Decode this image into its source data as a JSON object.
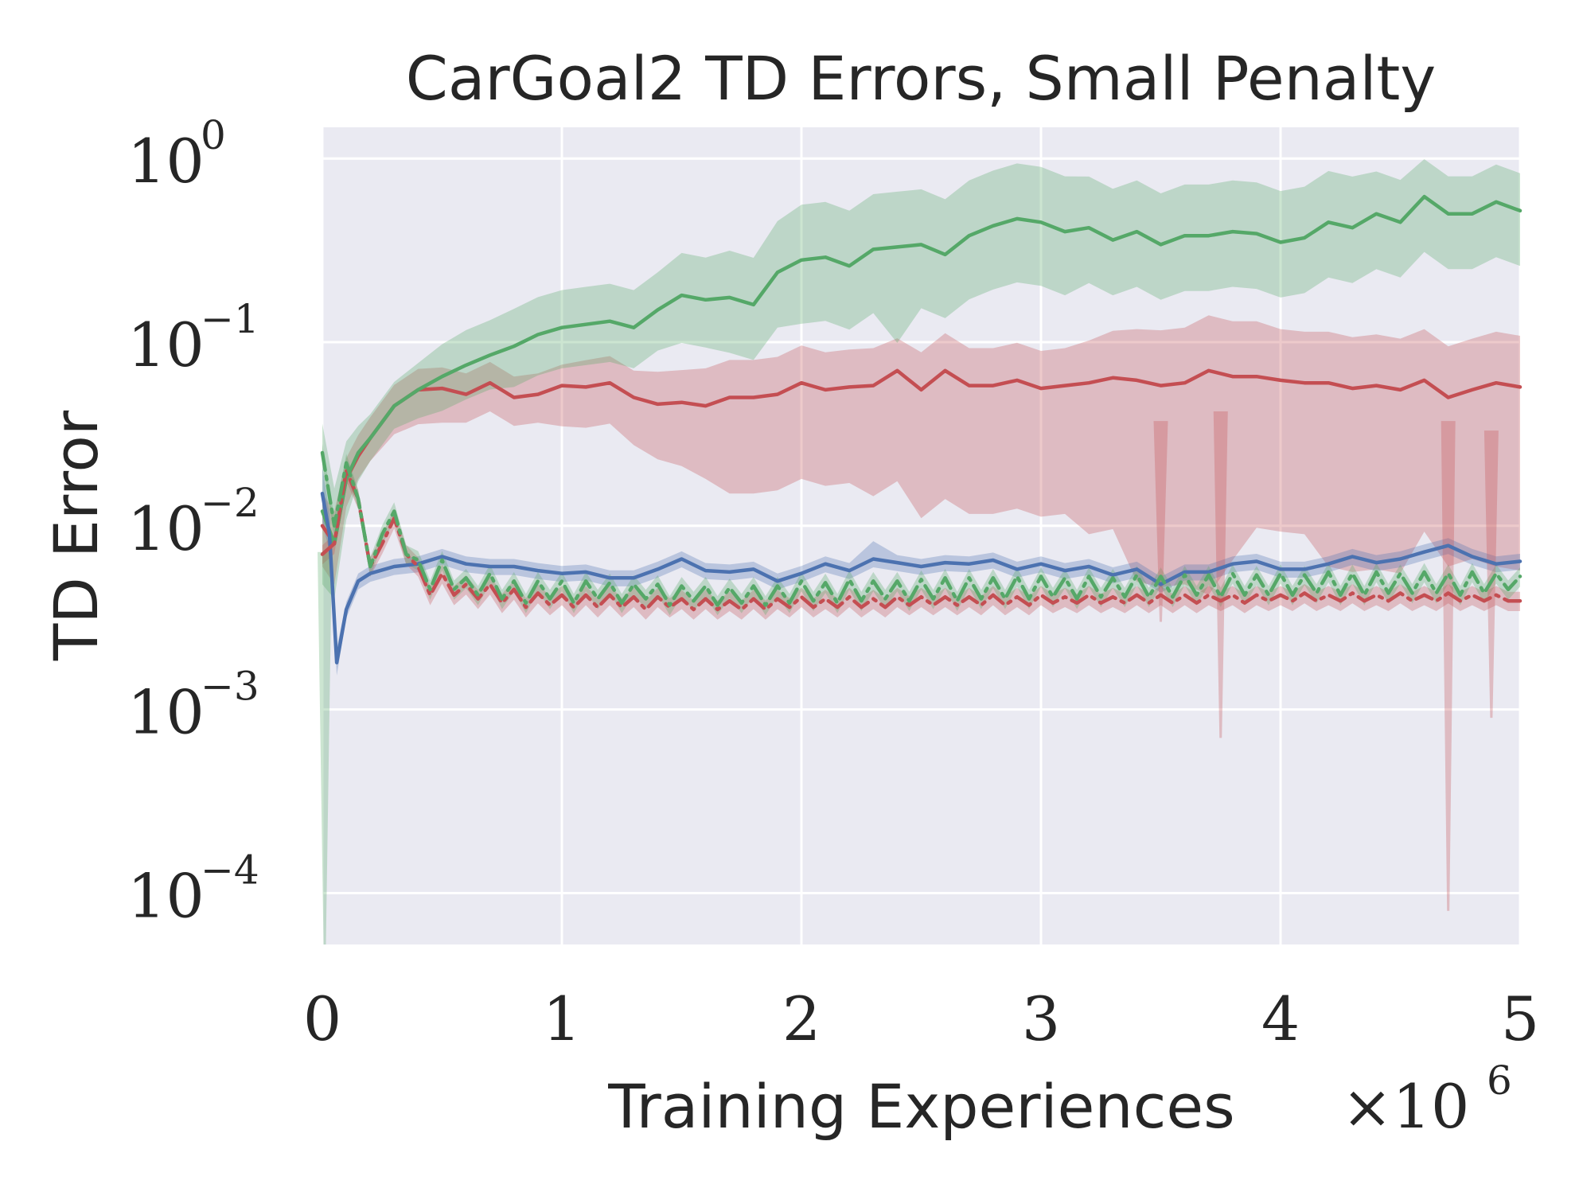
{
  "chart_data": {
    "type": "line",
    "title": "CarGoal2 TD Errors, Small Penalty",
    "xlabel": "Training Experiences",
    "ylabel": "TD Error",
    "x_scale_label": {
      "base": "×10",
      "exponent": "6"
    },
    "xlim": [
      0,
      5
    ],
    "ylim_log10": [
      -4.28,
      0.17
    ],
    "yscale": "log",
    "grid": true,
    "background": "#eaeaf2",
    "x_ticks": [
      {
        "value": 0,
        "label": "0"
      },
      {
        "value": 1,
        "label": "1"
      },
      {
        "value": 2,
        "label": "2"
      },
      {
        "value": 3,
        "label": "3"
      },
      {
        "value": 4,
        "label": "4"
      },
      {
        "value": 5,
        "label": "5"
      }
    ],
    "y_ticks": [
      {
        "log10": 0,
        "base": "10",
        "exponent": "0"
      },
      {
        "log10": -1,
        "base": "10",
        "exponent": "−1"
      },
      {
        "log10": -2,
        "base": "10",
        "exponent": "−2"
      },
      {
        "log10": -3,
        "base": "10",
        "exponent": "−3"
      },
      {
        "log10": -4,
        "base": "10",
        "exponent": "−4"
      }
    ],
    "series": [
      {
        "name": "green-solid",
        "color": "#55a868",
        "dash": "solid",
        "x": [
          0,
          0.05,
          0.1,
          0.15,
          0.2,
          0.3,
          0.4,
          0.5,
          0.6,
          0.7,
          0.8,
          0.9,
          1.0,
          1.1,
          1.2,
          1.3,
          1.4,
          1.5,
          1.6,
          1.7,
          1.8,
          1.9,
          2.0,
          2.1,
          2.2,
          2.3,
          2.4,
          2.5,
          2.6,
          2.7,
          2.8,
          2.9,
          3.0,
          3.1,
          3.2,
          3.3,
          3.4,
          3.5,
          3.6,
          3.7,
          3.8,
          3.9,
          4.0,
          4.1,
          4.2,
          4.3,
          4.4,
          4.5,
          4.6,
          4.7,
          4.8,
          4.9,
          5.0
        ],
        "y": [
          0.012,
          0.008,
          0.018,
          0.025,
          0.03,
          0.045,
          0.055,
          0.065,
          0.075,
          0.085,
          0.095,
          0.11,
          0.12,
          0.125,
          0.13,
          0.12,
          0.15,
          0.18,
          0.17,
          0.175,
          0.16,
          0.24,
          0.28,
          0.29,
          0.26,
          0.32,
          0.33,
          0.34,
          0.3,
          0.38,
          0.43,
          0.47,
          0.45,
          0.4,
          0.42,
          0.36,
          0.4,
          0.34,
          0.38,
          0.38,
          0.4,
          0.39,
          0.35,
          0.37,
          0.45,
          0.42,
          0.5,
          0.45,
          0.62,
          0.5,
          0.5,
          0.58,
          0.52
        ],
        "band_factor_low": [
          0.4,
          0.5,
          0.6,
          0.7,
          0.75,
          0.75,
          0.7,
          0.65,
          0.65,
          0.65,
          0.6,
          0.6,
          0.6,
          0.6,
          0.6,
          0.6,
          0.6,
          0.55,
          0.55,
          0.5,
          0.5,
          0.5,
          0.45,
          0.45,
          0.45,
          0.45,
          0.3,
          0.45,
          0.45,
          0.45,
          0.45,
          0.45,
          0.45,
          0.45,
          0.5,
          0.5,
          0.5,
          0.5,
          0.5,
          0.5,
          0.5,
          0.5,
          0.5,
          0.5,
          0.5,
          0.5,
          0.5,
          0.5,
          0.5,
          0.5,
          0.5,
          0.5,
          0.5
        ],
        "band_factor_high": [
          3.0,
          2.0,
          1.6,
          1.4,
          1.35,
          1.35,
          1.4,
          1.5,
          1.55,
          1.55,
          1.6,
          1.6,
          1.6,
          1.6,
          1.6,
          1.6,
          1.6,
          1.7,
          1.7,
          1.8,
          1.8,
          1.9,
          2.0,
          2.0,
          2.0,
          2.0,
          2.0,
          2.0,
          2.0,
          2.0,
          2.0,
          2.0,
          2.0,
          2.0,
          1.9,
          1.9,
          1.9,
          1.9,
          1.9,
          1.9,
          1.9,
          1.9,
          1.9,
          1.9,
          1.9,
          1.9,
          1.7,
          1.7,
          1.6,
          1.6,
          1.6,
          1.6,
          1.6
        ]
      },
      {
        "name": "red-solid",
        "color": "#c44e52",
        "dash": "solid",
        "x": [
          0,
          0.05,
          0.1,
          0.15,
          0.2,
          0.3,
          0.4,
          0.5,
          0.6,
          0.7,
          0.8,
          0.9,
          1.0,
          1.1,
          1.2,
          1.3,
          1.4,
          1.5,
          1.6,
          1.7,
          1.8,
          1.9,
          2.0,
          2.1,
          2.2,
          2.3,
          2.4,
          2.5,
          2.6,
          2.7,
          2.8,
          2.9,
          3.0,
          3.1,
          3.2,
          3.3,
          3.4,
          3.5,
          3.6,
          3.7,
          3.8,
          3.9,
          4.0,
          4.1,
          4.2,
          4.3,
          4.4,
          4.5,
          4.6,
          4.7,
          4.8,
          4.9,
          5.0
        ],
        "y": [
          0.01,
          0.008,
          0.018,
          0.024,
          0.03,
          0.045,
          0.055,
          0.056,
          0.052,
          0.06,
          0.05,
          0.052,
          0.058,
          0.057,
          0.06,
          0.05,
          0.046,
          0.047,
          0.045,
          0.05,
          0.05,
          0.052,
          0.06,
          0.055,
          0.057,
          0.058,
          0.07,
          0.055,
          0.07,
          0.058,
          0.058,
          0.062,
          0.056,
          0.058,
          0.06,
          0.064,
          0.062,
          0.058,
          0.06,
          0.07,
          0.065,
          0.065,
          0.062,
          0.06,
          0.06,
          0.056,
          0.058,
          0.055,
          0.062,
          0.05,
          0.055,
          0.06,
          0.057
        ],
        "band_factor_low": [
          0.6,
          0.6,
          0.7,
          0.75,
          0.75,
          0.7,
          0.65,
          0.65,
          0.7,
          0.7,
          0.7,
          0.7,
          0.6,
          0.6,
          0.6,
          0.55,
          0.5,
          0.45,
          0.4,
          0.3,
          0.3,
          0.3,
          0.3,
          0.3,
          0.3,
          0.25,
          0.25,
          0.2,
          0.2,
          0.2,
          0.2,
          0.2,
          0.2,
          0.2,
          0.15,
          0.15,
          0.08,
          0.08,
          0.08,
          0.06,
          0.1,
          0.15,
          0.15,
          0.15,
          0.1,
          0.1,
          0.1,
          0.1,
          0.15,
          0.12,
          0.12,
          0.1,
          0.1
        ],
        "band_factor_high": [
          1.5,
          1.5,
          1.3,
          1.3,
          1.3,
          1.3,
          1.3,
          1.3,
          1.3,
          1.3,
          1.3,
          1.3,
          1.3,
          1.4,
          1.4,
          1.4,
          1.5,
          1.5,
          1.6,
          1.6,
          1.6,
          1.6,
          1.6,
          1.6,
          1.6,
          1.6,
          1.5,
          1.6,
          1.6,
          1.6,
          1.6,
          1.6,
          1.6,
          1.6,
          1.7,
          1.8,
          1.9,
          2.0,
          2.0,
          2.0,
          2.0,
          2.0,
          1.9,
          1.9,
          1.9,
          1.9,
          1.9,
          1.9,
          1.9,
          1.9,
          1.9,
          1.9,
          1.9
        ]
      },
      {
        "name": "blue-solid",
        "color": "#4c72b0",
        "dash": "solid",
        "x": [
          0,
          0.03,
          0.06,
          0.1,
          0.15,
          0.2,
          0.3,
          0.4,
          0.5,
          0.6,
          0.7,
          0.8,
          0.9,
          1.0,
          1.1,
          1.2,
          1.3,
          1.4,
          1.5,
          1.6,
          1.7,
          1.8,
          1.9,
          2.0,
          2.1,
          2.2,
          2.3,
          2.4,
          2.5,
          2.6,
          2.7,
          2.8,
          2.9,
          3.0,
          3.1,
          3.2,
          3.3,
          3.4,
          3.5,
          3.6,
          3.7,
          3.8,
          3.9,
          4.0,
          4.1,
          4.2,
          4.3,
          4.4,
          4.5,
          4.6,
          4.7,
          4.8,
          4.9,
          5.0
        ],
        "y": [
          0.015,
          0.009,
          0.0018,
          0.0035,
          0.005,
          0.0055,
          0.006,
          0.0062,
          0.0068,
          0.0062,
          0.006,
          0.006,
          0.0057,
          0.0055,
          0.0056,
          0.0052,
          0.0052,
          0.0058,
          0.0066,
          0.0057,
          0.0056,
          0.0058,
          0.005,
          0.0055,
          0.0062,
          0.0057,
          0.0066,
          0.0063,
          0.006,
          0.0063,
          0.0062,
          0.0065,
          0.0058,
          0.0062,
          0.0057,
          0.006,
          0.0054,
          0.0058,
          0.0048,
          0.0056,
          0.0056,
          0.0062,
          0.0064,
          0.0058,
          0.0058,
          0.0062,
          0.0068,
          0.0063,
          0.0066,
          0.0072,
          0.0078,
          0.0068,
          0.0062,
          0.0064
        ],
        "band_factor_low": [
          0.7,
          0.8,
          0.85,
          0.9,
          0.9,
          0.9,
          0.9,
          0.9,
          0.9,
          0.9,
          0.9,
          0.9,
          0.9,
          0.9,
          0.9,
          0.9,
          0.9,
          0.9,
          0.9,
          0.9,
          0.9,
          0.9,
          0.9,
          0.9,
          0.9,
          0.9,
          0.9,
          0.9,
          0.9,
          0.9,
          0.9,
          0.9,
          0.9,
          0.9,
          0.9,
          0.9,
          0.9,
          0.9,
          0.9,
          0.9,
          0.9,
          0.9,
          0.9,
          0.9,
          0.9,
          0.9,
          0.9,
          0.9,
          0.9,
          0.9,
          0.9,
          0.9,
          0.9,
          0.9
        ],
        "band_factor_high": [
          1.4,
          1.3,
          1.2,
          1.1,
          1.1,
          1.1,
          1.1,
          1.1,
          1.1,
          1.1,
          1.1,
          1.1,
          1.1,
          1.1,
          1.1,
          1.1,
          1.1,
          1.1,
          1.1,
          1.1,
          1.1,
          1.1,
          1.1,
          1.1,
          1.1,
          1.1,
          1.25,
          1.1,
          1.1,
          1.1,
          1.1,
          1.1,
          1.1,
          1.1,
          1.1,
          1.1,
          1.1,
          1.1,
          1.1,
          1.1,
          1.1,
          1.1,
          1.1,
          1.1,
          1.1,
          1.1,
          1.1,
          1.1,
          1.1,
          1.1,
          1.1,
          1.1,
          1.1,
          1.1
        ]
      },
      {
        "name": "green-dashdot",
        "color": "#55a868",
        "dash": "dashdot",
        "x": [
          0,
          0.05,
          0.1,
          0.15,
          0.2,
          0.25,
          0.3,
          0.35,
          0.4,
          0.45,
          0.5,
          0.55,
          0.6,
          0.65,
          0.7,
          0.75,
          0.8,
          0.85,
          0.9,
          0.95,
          1.0,
          1.05,
          1.1,
          1.15,
          1.2,
          1.25,
          1.3,
          1.35,
          1.4,
          1.45,
          1.5,
          1.55,
          1.6,
          1.65,
          1.7,
          1.75,
          1.8,
          1.85,
          1.9,
          1.95,
          2.0,
          2.05,
          2.1,
          2.15,
          2.2,
          2.25,
          2.3,
          2.35,
          2.4,
          2.45,
          2.5,
          2.55,
          2.6,
          2.65,
          2.7,
          2.75,
          2.8,
          2.85,
          2.9,
          2.95,
          3.0,
          3.05,
          3.1,
          3.15,
          3.2,
          3.25,
          3.3,
          3.35,
          3.4,
          3.45,
          3.5,
          3.55,
          3.6,
          3.65,
          3.7,
          3.75,
          3.8,
          3.85,
          3.9,
          3.95,
          4.0,
          4.05,
          4.1,
          4.15,
          4.2,
          4.25,
          4.3,
          4.35,
          4.4,
          4.45,
          4.5,
          4.55,
          4.6,
          4.65,
          4.7,
          4.75,
          4.8,
          4.85,
          4.9,
          4.95,
          5.0
        ],
        "y": [
          0.025,
          0.01,
          0.022,
          0.014,
          0.006,
          0.009,
          0.012,
          0.007,
          0.0065,
          0.0045,
          0.0065,
          0.0045,
          0.0052,
          0.0042,
          0.0055,
          0.004,
          0.005,
          0.0038,
          0.005,
          0.004,
          0.005,
          0.0038,
          0.005,
          0.004,
          0.0049,
          0.0038,
          0.0048,
          0.004,
          0.0048,
          0.0037,
          0.0047,
          0.0039,
          0.0047,
          0.0037,
          0.0046,
          0.0038,
          0.0047,
          0.0037,
          0.0047,
          0.0038,
          0.005,
          0.0039,
          0.0049,
          0.0038,
          0.0051,
          0.0039,
          0.005,
          0.004,
          0.005,
          0.0039,
          0.0051,
          0.004,
          0.0052,
          0.0039,
          0.0052,
          0.004,
          0.0052,
          0.004,
          0.0053,
          0.004,
          0.0053,
          0.0041,
          0.0052,
          0.004,
          0.0053,
          0.0041,
          0.0052,
          0.0041,
          0.0054,
          0.0041,
          0.0053,
          0.0041,
          0.0054,
          0.0042,
          0.0054,
          0.0041,
          0.0055,
          0.0042,
          0.0054,
          0.0042,
          0.0055,
          0.0042,
          0.0054,
          0.0043,
          0.0056,
          0.0042,
          0.0055,
          0.0042,
          0.0056,
          0.0043,
          0.0055,
          0.0043,
          0.0056,
          0.0043,
          0.0055,
          0.0042,
          0.0056,
          0.0043,
          0.0055,
          0.0045,
          0.0053
        ],
        "band_factor_low": 0.88,
        "band_factor_high": 1.12
      },
      {
        "name": "red-dashdot",
        "color": "#c44e52",
        "dash": "dashdot",
        "x": [
          0,
          0.05,
          0.1,
          0.15,
          0.2,
          0.25,
          0.3,
          0.35,
          0.4,
          0.45,
          0.5,
          0.55,
          0.6,
          0.65,
          0.7,
          0.75,
          0.8,
          0.85,
          0.9,
          0.95,
          1.0,
          1.05,
          1.1,
          1.15,
          1.2,
          1.25,
          1.3,
          1.35,
          1.4,
          1.45,
          1.5,
          1.55,
          1.6,
          1.65,
          1.7,
          1.75,
          1.8,
          1.85,
          1.9,
          1.95,
          2.0,
          2.05,
          2.1,
          2.15,
          2.2,
          2.25,
          2.3,
          2.35,
          2.4,
          2.45,
          2.5,
          2.55,
          2.6,
          2.65,
          2.7,
          2.75,
          2.8,
          2.85,
          2.9,
          2.95,
          3.0,
          3.05,
          3.1,
          3.15,
          3.2,
          3.25,
          3.3,
          3.35,
          3.4,
          3.45,
          3.5,
          3.55,
          3.6,
          3.65,
          3.7,
          3.75,
          3.8,
          3.85,
          3.9,
          3.95,
          4.0,
          4.05,
          4.1,
          4.15,
          4.2,
          4.25,
          4.3,
          4.35,
          4.4,
          4.45,
          4.5,
          4.55,
          4.6,
          4.65,
          4.7,
          4.75,
          4.8,
          4.85,
          4.9,
          4.95,
          5.0
        ],
        "y": [
          0.007,
          0.008,
          0.02,
          0.014,
          0.006,
          0.008,
          0.011,
          0.007,
          0.006,
          0.0042,
          0.0055,
          0.0042,
          0.0048,
          0.004,
          0.0048,
          0.0038,
          0.0045,
          0.0036,
          0.0043,
          0.0037,
          0.0042,
          0.0036,
          0.0042,
          0.0036,
          0.0042,
          0.0036,
          0.0041,
          0.0035,
          0.0041,
          0.0036,
          0.004,
          0.0035,
          0.004,
          0.0035,
          0.0039,
          0.0035,
          0.004,
          0.0035,
          0.004,
          0.0036,
          0.0041,
          0.0036,
          0.004,
          0.0036,
          0.0041,
          0.0036,
          0.004,
          0.0036,
          0.0041,
          0.0037,
          0.0041,
          0.0037,
          0.0041,
          0.0037,
          0.0041,
          0.0037,
          0.0042,
          0.0037,
          0.0041,
          0.0037,
          0.0042,
          0.0038,
          0.0041,
          0.0038,
          0.0042,
          0.0038,
          0.0041,
          0.0038,
          0.0042,
          0.0038,
          0.0042,
          0.0038,
          0.0042,
          0.0038,
          0.0042,
          0.0039,
          0.0042,
          0.0038,
          0.0042,
          0.0039,
          0.0042,
          0.0039,
          0.0043,
          0.0039,
          0.0042,
          0.0039,
          0.0043,
          0.0039,
          0.0042,
          0.0039,
          0.0043,
          0.0039,
          0.0042,
          0.0039,
          0.0043,
          0.0039,
          0.0042,
          0.0039,
          0.0042,
          0.0039,
          0.0039
        ],
        "band_factor_low": 0.88,
        "band_factor_high": 1.12
      }
    ],
    "spikes": [
      {
        "series": "red-solid",
        "x": 3.5,
        "y_low": 0.003
      },
      {
        "series": "red-solid",
        "x": 3.75,
        "y_low": 0.0007
      },
      {
        "series": "red-solid",
        "x": 4.7,
        "y_low": 8e-05
      },
      {
        "series": "red-solid",
        "x": 4.88,
        "y_low": 0.0009
      },
      {
        "series": "green-solid",
        "x": 0.01,
        "y_low": 5e-05
      }
    ]
  }
}
